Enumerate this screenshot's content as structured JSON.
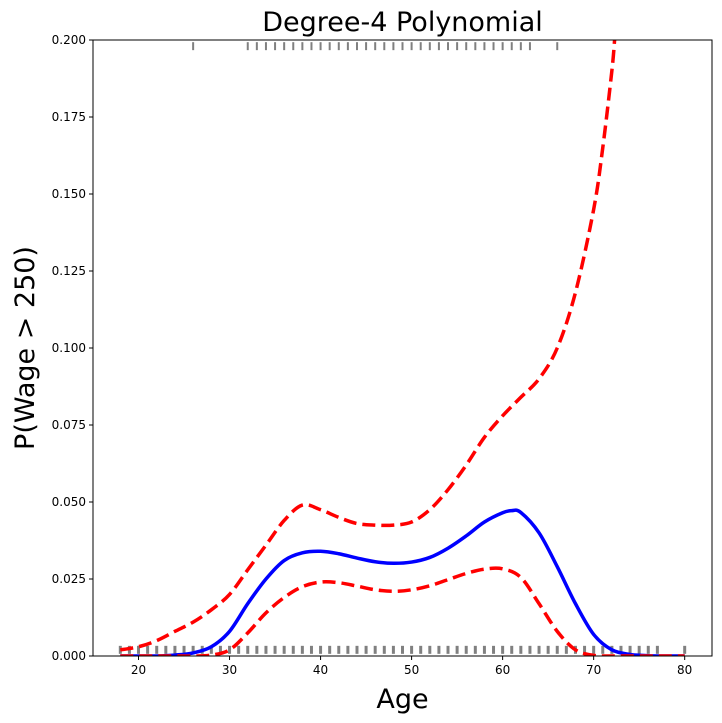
{
  "chart_data": {
    "type": "line",
    "title": "Degree-4 Polynomial",
    "xlabel": "Age",
    "ylabel": "P(Wage > 250)",
    "xlim": [
      15,
      83
    ],
    "ylim": [
      0,
      0.2
    ],
    "xticks": [
      20,
      30,
      40,
      50,
      60,
      70,
      80
    ],
    "yticks": [
      "0.000",
      "0.025",
      "0.050",
      "0.075",
      "0.100",
      "0.125",
      "0.150",
      "0.175",
      "0.200"
    ],
    "grid": false,
    "series": [
      {
        "role": "fit",
        "color": "#0000ff",
        "style": "solid",
        "x": [
          18,
          20,
          22,
          24,
          26,
          28,
          30,
          32,
          34,
          36,
          38,
          40,
          42,
          44,
          46,
          48,
          50,
          52,
          54,
          56,
          58,
          60,
          61,
          62,
          64,
          66,
          68,
          70,
          72,
          74,
          76,
          78,
          80
        ],
        "y": [
          0.0,
          0.0,
          0.0,
          0.0003,
          0.001,
          0.003,
          0.008,
          0.017,
          0.025,
          0.031,
          0.0335,
          0.034,
          0.0332,
          0.0318,
          0.0306,
          0.0301,
          0.0305,
          0.032,
          0.035,
          0.039,
          0.0435,
          0.0465,
          0.0472,
          0.0466,
          0.04,
          0.029,
          0.017,
          0.007,
          0.002,
          0.0005,
          0.0001,
          0.0,
          0.0
        ]
      },
      {
        "role": "upper-ci",
        "color": "#ff0000",
        "style": "dashed",
        "x": [
          18,
          20,
          22,
          24,
          26,
          28,
          30,
          32,
          34,
          36,
          38,
          40,
          42,
          44,
          46,
          48,
          50,
          52,
          54,
          56,
          58,
          60,
          62,
          64,
          66,
          68,
          70,
          71,
          72,
          72.3
        ],
        "y": [
          0.002,
          0.003,
          0.005,
          0.008,
          0.011,
          0.015,
          0.02,
          0.028,
          0.036,
          0.044,
          0.049,
          0.0475,
          0.045,
          0.043,
          0.0425,
          0.0425,
          0.0435,
          0.0475,
          0.054,
          0.062,
          0.071,
          0.078,
          0.084,
          0.09,
          0.1,
          0.118,
          0.145,
          0.165,
          0.19,
          0.2
        ]
      },
      {
        "role": "lower-ci",
        "color": "#ff0000",
        "style": "dashed",
        "x": [
          18,
          20,
          22,
          24,
          26,
          28,
          30,
          32,
          34,
          36,
          38,
          40,
          42,
          44,
          46,
          48,
          50,
          52,
          54,
          56,
          58,
          60,
          62,
          64,
          66,
          68,
          70,
          72,
          74,
          76,
          78,
          80
        ],
        "y": [
          0.0,
          0.0,
          0.0,
          0.0,
          0.0,
          0.0003,
          0.002,
          0.0075,
          0.014,
          0.019,
          0.0225,
          0.024,
          0.0238,
          0.0227,
          0.0215,
          0.021,
          0.0215,
          0.0228,
          0.0248,
          0.0268,
          0.0282,
          0.0283,
          0.0255,
          0.017,
          0.008,
          0.002,
          0.0002,
          0.0,
          0.0,
          0.0,
          0.0,
          0.0
        ]
      }
    ],
    "rug_top": {
      "color": "#808080",
      "y": 0.198,
      "x": [
        26,
        32,
        33,
        34,
        35,
        36,
        37,
        38,
        39,
        40,
        41,
        42,
        43,
        44,
        45,
        46,
        47,
        48,
        49,
        50,
        51,
        52,
        53,
        54,
        55,
        56,
        57,
        58,
        59,
        60,
        61,
        62,
        63,
        66
      ]
    },
    "rug_bottom": {
      "color": "#808080",
      "y": 0.002,
      "x": [
        18,
        19,
        20,
        21,
        22,
        23,
        24,
        25,
        26,
        27,
        28,
        29,
        30,
        31,
        32,
        33,
        34,
        35,
        36,
        37,
        38,
        39,
        40,
        41,
        42,
        43,
        44,
        45,
        46,
        47,
        48,
        49,
        50,
        51,
        52,
        53,
        54,
        55,
        56,
        57,
        58,
        59,
        60,
        61,
        62,
        63,
        64,
        65,
        66,
        67,
        68,
        69,
        70,
        71,
        72,
        73,
        74,
        75,
        76,
        77,
        80
      ]
    }
  }
}
